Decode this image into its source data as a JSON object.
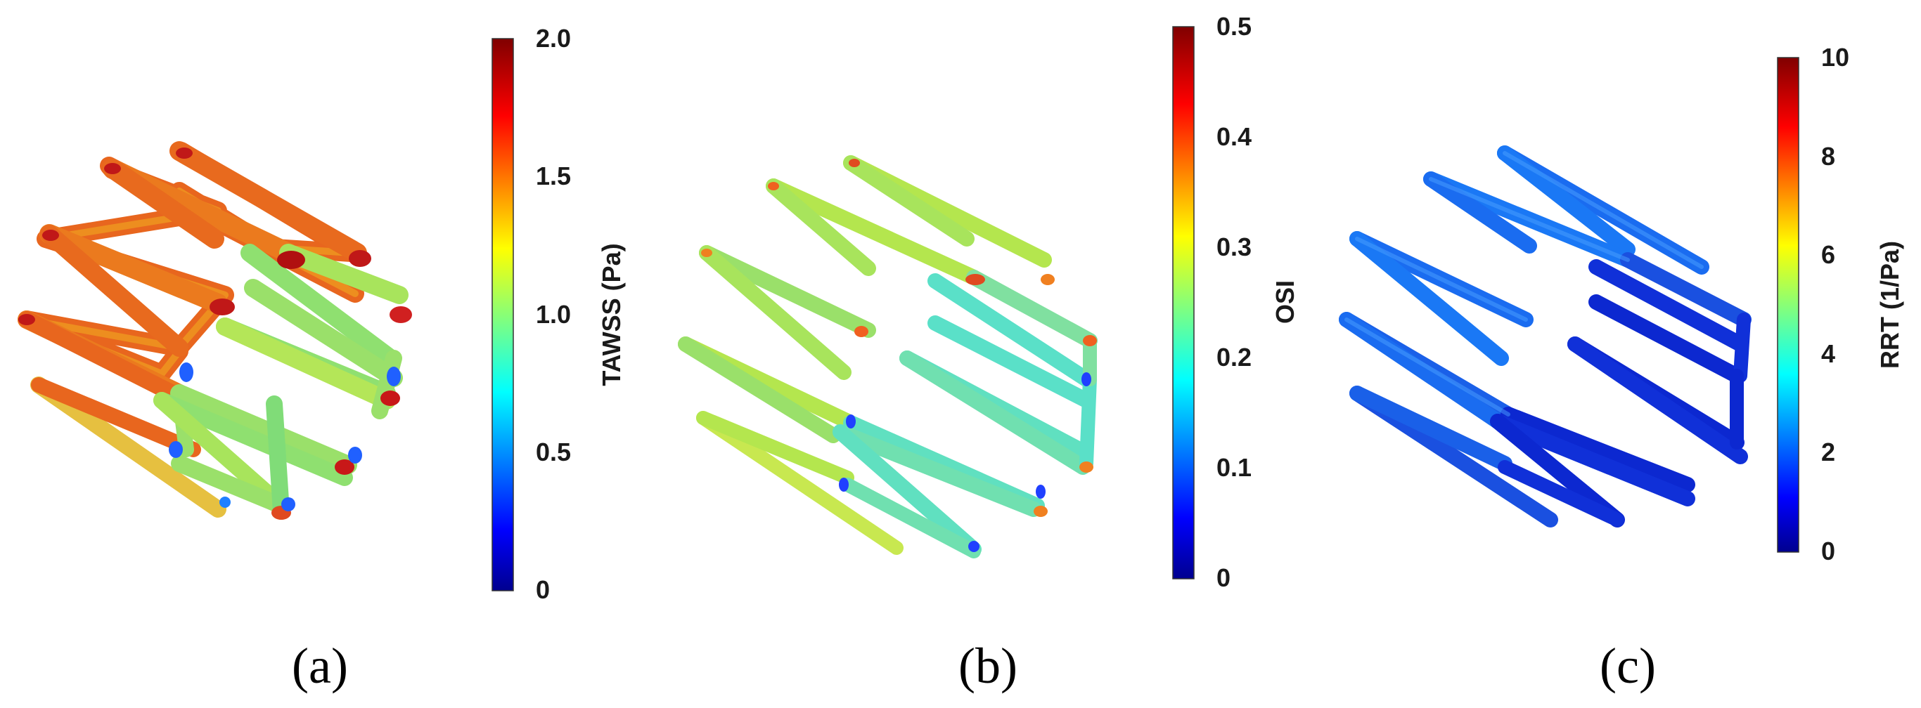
{
  "panels": [
    {
      "id": "a",
      "caption": "(a)",
      "colorbar": {
        "label": "TAWSS (Pa)",
        "min": 0,
        "max": 2.0,
        "ticks": [
          "0",
          "0.5",
          "1.0",
          "1.5",
          "2.0"
        ]
      },
      "strut_style": "tawss"
    },
    {
      "id": "b",
      "caption": "(b)",
      "colorbar": {
        "label": "OSI",
        "min": 0,
        "max": 0.5,
        "ticks": [
          "0",
          "0.1",
          "0.2",
          "0.3",
          "0.4",
          "0.5"
        ]
      },
      "strut_style": "osi"
    },
    {
      "id": "c",
      "caption": "(c)",
      "colorbar": {
        "label": "RRT (1/Pa)",
        "min": 0,
        "max": 10,
        "ticks": [
          "0",
          "2",
          "4",
          "6",
          "8",
          "10"
        ]
      },
      "strut_style": "rrt"
    }
  ],
  "colormap": "jet",
  "colors": {
    "jet": [
      "#00008f",
      "#0000ff",
      "#0080ff",
      "#00ffff",
      "#80ff80",
      "#ffff00",
      "#ff8000",
      "#ff0000",
      "#800000"
    ]
  }
}
